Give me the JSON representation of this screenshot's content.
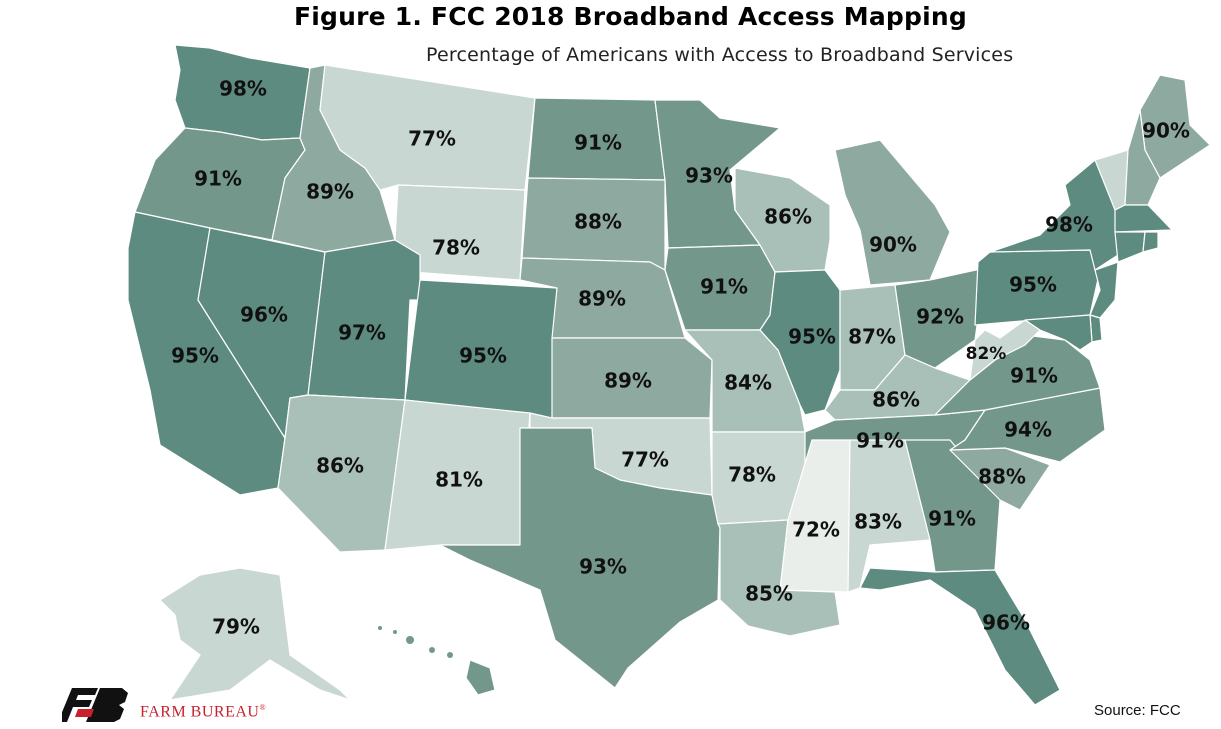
{
  "title": "Figure 1. FCC 2018 Broadband Access Mapping",
  "subtitle": "Percentage of Americans with Access to Broadband Services",
  "source": "Source: FCC",
  "brand": "FARM BUREAU",
  "brand_mark": "®",
  "colors": {
    "level_1": "#e9eeeb",
    "level_2": "#c8d7d2",
    "level_3": "#a9c0b8",
    "level_4": "#8ea99f",
    "level_5": "#74978c",
    "level_6": "#5e8b7f",
    "border": "#ffffff",
    "logo": "#111111",
    "logo_accent": "#c8202c"
  },
  "map_data": {
    "metric": "Percentage of Americans with Access to Broadband Services",
    "states": [
      {
        "name": "Washington",
        "value": 98,
        "label": "98%"
      },
      {
        "name": "Oregon",
        "value": 91,
        "label": "91%"
      },
      {
        "name": "California",
        "value": 95,
        "label": "95%"
      },
      {
        "name": "Nevada",
        "value": 96,
        "label": "96%"
      },
      {
        "name": "Idaho",
        "value": 89,
        "label": "89%"
      },
      {
        "name": "Montana",
        "value": 77,
        "label": "77%"
      },
      {
        "name": "Wyoming",
        "value": 78,
        "label": "78%"
      },
      {
        "name": "Utah",
        "value": 97,
        "label": "97%"
      },
      {
        "name": "Arizona",
        "value": 86,
        "label": "86%"
      },
      {
        "name": "Colorado",
        "value": 95,
        "label": "95%"
      },
      {
        "name": "New Mexico",
        "value": 81,
        "label": "81%"
      },
      {
        "name": "North Dakota",
        "value": 91,
        "label": "91%"
      },
      {
        "name": "South Dakota",
        "value": 88,
        "label": "88%"
      },
      {
        "name": "Nebraska",
        "value": 89,
        "label": "89%"
      },
      {
        "name": "Kansas",
        "value": 89,
        "label": "89%"
      },
      {
        "name": "Oklahoma",
        "value": 77,
        "label": "77%"
      },
      {
        "name": "Texas",
        "value": 93,
        "label": "93%"
      },
      {
        "name": "Minnesota",
        "value": 93,
        "label": "93%"
      },
      {
        "name": "Iowa",
        "value": 91,
        "label": "91%"
      },
      {
        "name": "Missouri",
        "value": 84,
        "label": "84%"
      },
      {
        "name": "Arkansas",
        "value": 78,
        "label": "78%"
      },
      {
        "name": "Louisiana",
        "value": 85,
        "label": "85%"
      },
      {
        "name": "Wisconsin",
        "value": 86,
        "label": "86%"
      },
      {
        "name": "Illinois",
        "value": 95,
        "label": "95%"
      },
      {
        "name": "Michigan",
        "value": 90,
        "label": "90%"
      },
      {
        "name": "Indiana",
        "value": 87,
        "label": "87%"
      },
      {
        "name": "Ohio",
        "value": 92,
        "label": "92%"
      },
      {
        "name": "Kentucky",
        "value": 86,
        "label": "86%"
      },
      {
        "name": "Tennessee",
        "value": 91,
        "label": "91%"
      },
      {
        "name": "Mississippi",
        "value": 72,
        "label": "72%"
      },
      {
        "name": "Alabama",
        "value": 83,
        "label": "83%"
      },
      {
        "name": "Georgia",
        "value": 91,
        "label": "91%"
      },
      {
        "name": "Florida",
        "value": 96,
        "label": "96%"
      },
      {
        "name": "South Carolina",
        "value": 88,
        "label": "88%"
      },
      {
        "name": "North Carolina",
        "value": 94,
        "label": "94%"
      },
      {
        "name": "Virginia",
        "value": 91,
        "label": "91%"
      },
      {
        "name": "West Virginia",
        "value": 82,
        "label": "82%"
      },
      {
        "name": "Pennsylvania",
        "value": 95,
        "label": "95%"
      },
      {
        "name": "New York",
        "value": 98,
        "label": "98%"
      },
      {
        "name": "Maine",
        "value": 90,
        "label": "90%"
      },
      {
        "name": "Alaska",
        "value": 79,
        "label": "79%"
      },
      {
        "name": "Vermont",
        "value": null,
        "label": ""
      },
      {
        "name": "New Hampshire",
        "value": null,
        "label": ""
      },
      {
        "name": "Massachusetts",
        "value": null,
        "label": ""
      },
      {
        "name": "Connecticut",
        "value": null,
        "label": ""
      },
      {
        "name": "Rhode Island",
        "value": null,
        "label": ""
      },
      {
        "name": "New Jersey",
        "value": null,
        "label": ""
      },
      {
        "name": "Delaware",
        "value": null,
        "label": ""
      },
      {
        "name": "Maryland",
        "value": null,
        "label": ""
      },
      {
        "name": "Hawaii",
        "value": null,
        "label": ""
      }
    ]
  }
}
